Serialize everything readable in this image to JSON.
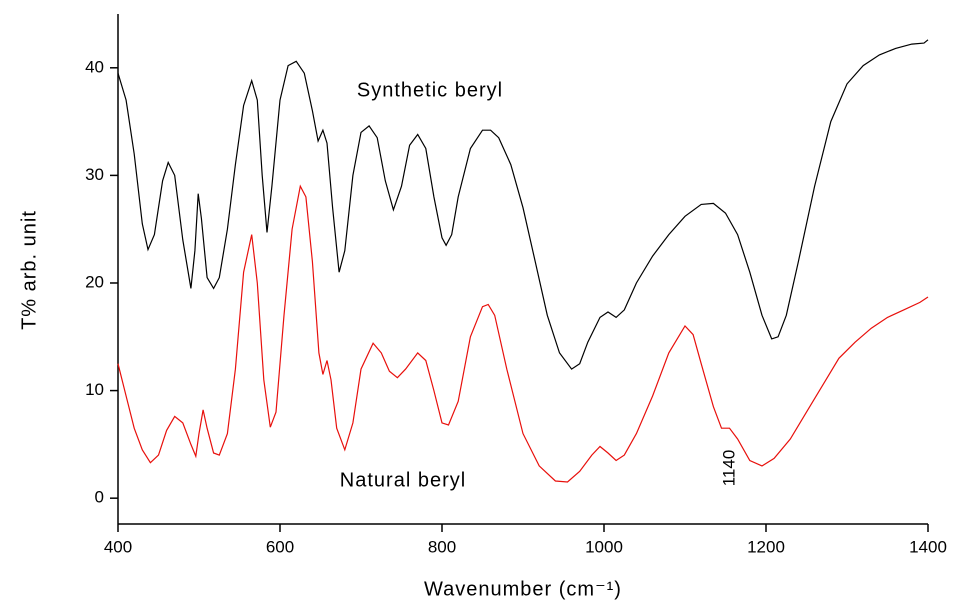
{
  "chart_data": {
    "type": "line",
    "xlabel": "Wavenumber (cm⁻¹)",
    "ylabel": "T% arb. unit",
    "annotations": [
      "Synthetic  beryl",
      "Natural beryl",
      "1140"
    ],
    "xlim": [
      400,
      1400
    ],
    "ylim": [
      -2.4,
      45
    ],
    "xticks": [
      400,
      600,
      800,
      1000,
      1200,
      1400
    ],
    "yticks": [
      0,
      10,
      20,
      30,
      40
    ],
    "series": [
      {
        "name": "Synthetic beryl",
        "color": "#000000",
        "x": [
          400,
          410,
          420,
          430,
          437,
          445,
          455,
          462,
          470,
          480,
          490,
          495,
          499,
          503,
          510,
          518,
          525,
          535,
          545,
          555,
          565,
          572,
          578,
          584,
          590,
          600,
          610,
          620,
          630,
          640,
          647,
          653,
          658,
          665,
          673,
          680,
          690,
          700,
          710,
          720,
          730,
          740,
          750,
          760,
          770,
          780,
          790,
          800,
          805,
          812,
          820,
          835,
          850,
          860,
          870,
          885,
          900,
          915,
          930,
          945,
          960,
          970,
          980,
          995,
          1005,
          1015,
          1025,
          1040,
          1060,
          1080,
          1100,
          1120,
          1135,
          1150,
          1165,
          1180,
          1195,
          1207,
          1215,
          1225,
          1240,
          1260,
          1280,
          1300,
          1320,
          1340,
          1360,
          1380,
          1395,
          1400
        ],
        "values": [
          39.5,
          37,
          32,
          25.5,
          23.1,
          24.5,
          29.5,
          31.2,
          30,
          24,
          19.5,
          23,
          28.3,
          26,
          20.5,
          19.5,
          20.5,
          25,
          31,
          36.5,
          38.8,
          37,
          30,
          24.7,
          29,
          37,
          40.2,
          40.6,
          39.5,
          36,
          33.2,
          34.2,
          33,
          27,
          21,
          23,
          30,
          34,
          34.6,
          33.5,
          29.5,
          26.8,
          29,
          32.8,
          33.8,
          32.5,
          28,
          24.2,
          23.5,
          24.5,
          28,
          32.5,
          34.2,
          34.2,
          33.5,
          31,
          27,
          22,
          17,
          13.5,
          12,
          12.5,
          14.5,
          16.8,
          17.3,
          16.8,
          17.5,
          20,
          22.5,
          24.5,
          26.2,
          27.3,
          27.4,
          26.5,
          24.5,
          21,
          17,
          14.8,
          15,
          17,
          22,
          29,
          35,
          38.5,
          40.2,
          41.2,
          41.8,
          42.2,
          42.3,
          42.6
        ]
      },
      {
        "name": "Natural beryl",
        "color": "#e8100c",
        "x": [
          400,
          410,
          420,
          430,
          440,
          450,
          460,
          470,
          480,
          490,
          496,
          500,
          505,
          510,
          518,
          525,
          535,
          545,
          555,
          565,
          572,
          580,
          588,
          595,
          605,
          615,
          625,
          632,
          640,
          648,
          653,
          658,
          663,
          670,
          680,
          690,
          700,
          715,
          725,
          735,
          745,
          755,
          770,
          780,
          790,
          800,
          808,
          820,
          835,
          850,
          857,
          865,
          880,
          900,
          920,
          940,
          955,
          970,
          985,
          995,
          1005,
          1015,
          1025,
          1040,
          1060,
          1080,
          1100,
          1110,
          1120,
          1135,
          1145,
          1155,
          1165,
          1180,
          1195,
          1210,
          1230,
          1250,
          1270,
          1290,
          1310,
          1330,
          1350,
          1370,
          1390,
          1400
        ],
        "values": [
          12.5,
          9.5,
          6.5,
          4.5,
          3.3,
          4,
          6.3,
          7.6,
          7,
          5,
          3.9,
          6,
          8.2,
          6.5,
          4.2,
          4,
          6,
          12,
          21,
          24.5,
          20,
          11,
          6.6,
          8,
          17,
          25,
          29,
          28,
          22,
          13.5,
          11.5,
          12.8,
          11,
          6.5,
          4.5,
          7,
          12,
          14.4,
          13.5,
          11.8,
          11.2,
          12,
          13.5,
          12.8,
          10,
          7,
          6.8,
          9,
          15,
          17.8,
          18,
          17,
          12,
          6,
          3,
          1.6,
          1.5,
          2.5,
          4,
          4.8,
          4.2,
          3.5,
          4,
          6,
          9.5,
          13.5,
          16,
          15.2,
          12.5,
          8.5,
          6.5,
          6.5,
          5.5,
          3.5,
          3,
          3.7,
          5.5,
          8,
          10.5,
          13,
          14.5,
          15.8,
          16.8,
          17.5,
          18.2,
          18.7
        ]
      }
    ]
  }
}
